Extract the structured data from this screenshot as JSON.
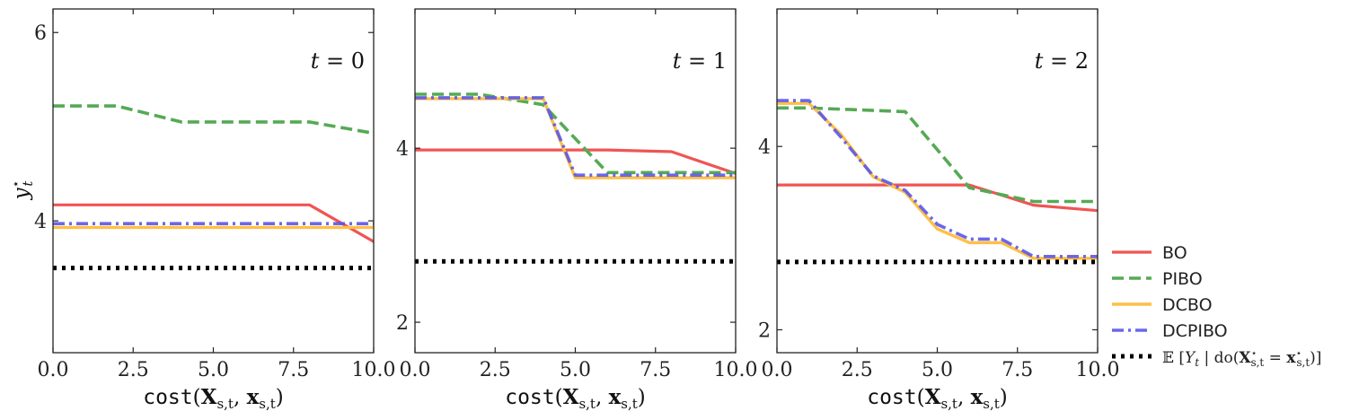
{
  "colors": {
    "BO": "#f05454",
    "PIBO": "#55aa55",
    "DCBO": "#ffbf47",
    "DCPIBO": "#5b57e8",
    "target": "#000000"
  },
  "legend": {
    "items": [
      {
        "key": "BO",
        "label": "BO",
        "dash": "solid"
      },
      {
        "key": "PIBO",
        "label": "PIBO",
        "dash": "dashed"
      },
      {
        "key": "DCBO",
        "label": "DCBO",
        "dash": "solid"
      },
      {
        "key": "DCPIBO",
        "label": "DCPIBO",
        "dash": "dashdot"
      },
      {
        "key": "target",
        "label": "𝔼 [Y_t | do(X*_{s,t} = x*_{s,t})]",
        "dash": "dotted"
      }
    ]
  },
  "chart_data": [
    {
      "type": "line",
      "panel_label": "t = 0",
      "xlabel": "cost(X_{s,t}, x_{s,t})",
      "ylabel": "y*_t",
      "xlim": [
        0,
        10
      ],
      "ylim": [
        2.6,
        6.25
      ],
      "xticks": [
        "0.0",
        "2.5",
        "5.0",
        "7.5",
        "10.0"
      ],
      "xtick_values": [
        0,
        2.5,
        5,
        7.5,
        10
      ],
      "yticks": [
        "4",
        "6"
      ],
      "ytick_values": [
        4,
        6
      ],
      "series": [
        {
          "name": "BO",
          "x": [
            0,
            8,
            10
          ],
          "y": [
            4.17,
            4.17,
            3.78
          ]
        },
        {
          "name": "PIBO",
          "x": [
            0,
            2,
            4,
            8,
            10
          ],
          "y": [
            5.22,
            5.22,
            5.05,
            5.05,
            4.93
          ]
        },
        {
          "name": "DCBO",
          "x": [
            0,
            10
          ],
          "y": [
            3.93,
            3.93
          ]
        },
        {
          "name": "DCPIBO",
          "x": [
            0,
            10
          ],
          "y": [
            3.97,
            3.97
          ]
        },
        {
          "name": "target",
          "x": [
            0,
            10
          ],
          "y": [
            3.5,
            3.5
          ]
        }
      ]
    },
    {
      "type": "line",
      "panel_label": "t = 1",
      "xlabel": "cost(X_{s,t}, x_{s,t})",
      "ylabel": "",
      "xlim": [
        0,
        10
      ],
      "ylim": [
        1.65,
        5.6
      ],
      "xticks": [
        "0.0",
        "2.5",
        "5.0",
        "7.5",
        "10.0"
      ],
      "xtick_values": [
        0,
        2.5,
        5,
        7.5,
        10
      ],
      "yticks": [
        "2",
        "4"
      ],
      "ytick_values": [
        2,
        4
      ],
      "series": [
        {
          "name": "BO",
          "x": [
            0,
            6,
            8,
            10
          ],
          "y": [
            3.98,
            3.98,
            3.96,
            3.71
          ]
        },
        {
          "name": "PIBO",
          "x": [
            0,
            2,
            4,
            6,
            10
          ],
          "y": [
            4.62,
            4.62,
            4.5,
            3.72,
            3.72
          ]
        },
        {
          "name": "DCBO",
          "x": [
            0,
            4,
            5,
            10
          ],
          "y": [
            4.57,
            4.57,
            3.66,
            3.66
          ]
        },
        {
          "name": "DCPIBO",
          "x": [
            0,
            4,
            5,
            10
          ],
          "y": [
            4.58,
            4.58,
            3.69,
            3.69
          ]
        },
        {
          "name": "target",
          "x": [
            0,
            10
          ],
          "y": [
            2.7,
            2.7
          ]
        }
      ]
    },
    {
      "type": "line",
      "panel_label": "t = 2",
      "xlabel": "cost(X_{s,t}, x_{s,t})",
      "ylabel": "",
      "xlim": [
        0,
        10
      ],
      "ylim": [
        1.75,
        5.5
      ],
      "xticks": [
        "0.0",
        "2.5",
        "5.0",
        "7.5",
        "10.0"
      ],
      "xtick_values": [
        0,
        2.5,
        5,
        7.5,
        10
      ],
      "yticks": [
        "2",
        "4"
      ],
      "ytick_values": [
        2,
        4
      ],
      "series": [
        {
          "name": "BO",
          "x": [
            0,
            6,
            8,
            10
          ],
          "y": [
            3.58,
            3.58,
            3.36,
            3.3
          ]
        },
        {
          "name": "PIBO",
          "x": [
            0,
            1,
            4,
            6,
            8,
            10
          ],
          "y": [
            4.42,
            4.42,
            4.38,
            3.55,
            3.4,
            3.4
          ]
        },
        {
          "name": "DCBO",
          "x": [
            0,
            1,
            2,
            3,
            4,
            5,
            6,
            7,
            8,
            10
          ],
          "y": [
            4.47,
            4.47,
            4.13,
            3.67,
            3.5,
            3.1,
            2.95,
            2.95,
            2.78,
            2.78
          ]
        },
        {
          "name": "DCPIBO",
          "x": [
            0,
            1,
            2,
            3,
            4,
            5,
            6,
            7,
            8,
            10
          ],
          "y": [
            4.5,
            4.5,
            4.1,
            3.68,
            3.52,
            3.15,
            2.99,
            2.99,
            2.8,
            2.8
          ]
        },
        {
          "name": "target",
          "x": [
            0,
            10
          ],
          "y": [
            2.74,
            2.74
          ]
        }
      ]
    }
  ]
}
